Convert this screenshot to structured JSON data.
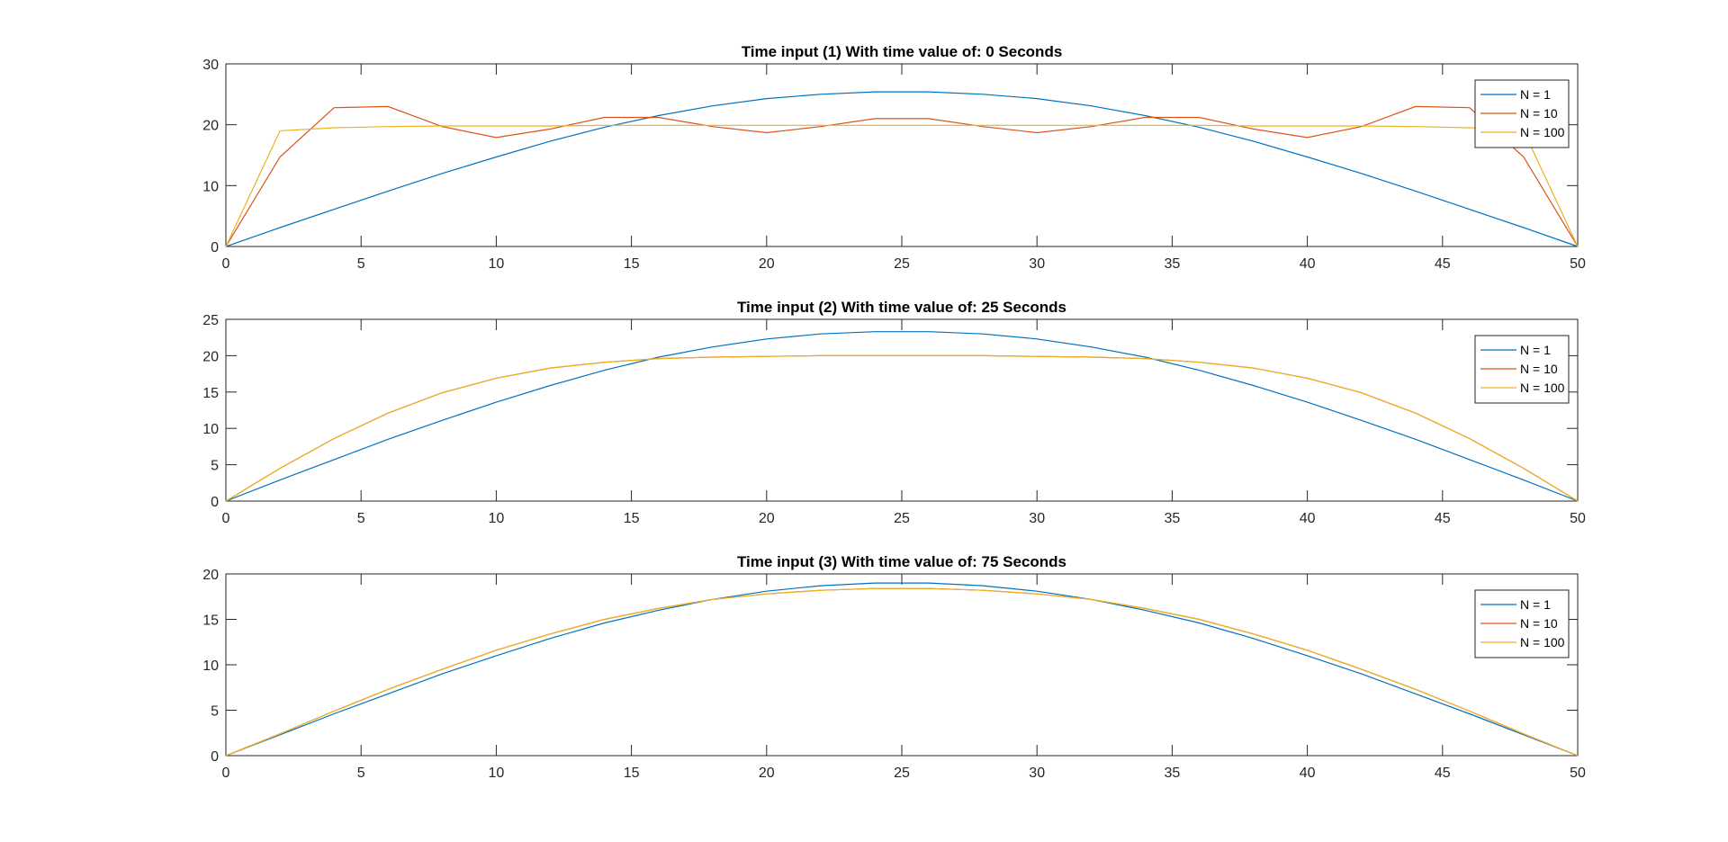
{
  "chart_data": [
    {
      "type": "line",
      "title": "Time input (1) With time value of: 0 Seconds",
      "xlabel": "",
      "ylabel": "",
      "xlim": [
        0,
        50
      ],
      "ylim": [
        0,
        30
      ],
      "xticks": [
        0,
        5,
        10,
        15,
        20,
        25,
        30,
        35,
        40,
        45,
        50
      ],
      "yticks": [
        0,
        10,
        20,
        30
      ],
      "grid": false,
      "legend_position": "top-right",
      "x": [
        0,
        2,
        4,
        6,
        8,
        10,
        12,
        14,
        16,
        18,
        20,
        22,
        24,
        26,
        28,
        30,
        32,
        34,
        36,
        38,
        40,
        42,
        44,
        46,
        48,
        50
      ],
      "series": [
        {
          "name": "N = 1",
          "color": "#0072bd",
          "values": [
            0,
            3.1,
            6.1,
            9.1,
            12.0,
            14.7,
            17.3,
            19.6,
            21.5,
            23.1,
            24.3,
            25.0,
            25.4,
            25.4,
            25.0,
            24.3,
            23.1,
            21.5,
            19.6,
            17.3,
            14.7,
            12.0,
            9.1,
            6.1,
            3.1,
            0
          ]
        },
        {
          "name": "N = 10",
          "color": "#d95319",
          "values": [
            0,
            14.7,
            22.8,
            23.0,
            19.7,
            17.9,
            19.3,
            21.2,
            21.2,
            19.7,
            18.7,
            19.7,
            21.0,
            21.0,
            19.7,
            18.7,
            19.7,
            21.2,
            21.2,
            19.3,
            17.9,
            19.7,
            23.0,
            22.8,
            14.7,
            0
          ]
        },
        {
          "name": "N = 100",
          "color": "#edb120",
          "values": [
            0,
            19.0,
            19.5,
            19.7,
            19.8,
            19.8,
            19.8,
            19.9,
            19.9,
            19.9,
            19.9,
            19.9,
            19.9,
            19.9,
            19.9,
            19.9,
            19.9,
            19.9,
            19.9,
            19.8,
            19.8,
            19.8,
            19.7,
            19.5,
            19.0,
            0
          ]
        }
      ]
    },
    {
      "type": "line",
      "title": "Time input (2) With time value of: 25 Seconds",
      "xlabel": "",
      "ylabel": "",
      "xlim": [
        0,
        50
      ],
      "ylim": [
        0,
        25
      ],
      "xticks": [
        0,
        5,
        10,
        15,
        20,
        25,
        30,
        35,
        40,
        45,
        50
      ],
      "yticks": [
        0,
        5,
        10,
        15,
        20,
        25
      ],
      "grid": false,
      "legend_position": "top-right",
      "x": [
        0,
        2,
        4,
        6,
        8,
        10,
        12,
        14,
        16,
        18,
        20,
        22,
        24,
        26,
        28,
        30,
        32,
        34,
        36,
        38,
        40,
        42,
        44,
        46,
        48,
        50
      ],
      "series": [
        {
          "name": "N = 1",
          "color": "#0072bd",
          "values": [
            0,
            2.9,
            5.7,
            8.5,
            11.1,
            13.6,
            15.9,
            18.0,
            19.8,
            21.2,
            22.3,
            23.0,
            23.3,
            23.3,
            23.0,
            22.3,
            21.2,
            19.8,
            18.0,
            15.9,
            13.6,
            11.1,
            8.5,
            5.7,
            2.9,
            0
          ]
        },
        {
          "name": "N = 10",
          "color": "#d95319",
          "values": [
            0,
            4.5,
            8.6,
            12.1,
            14.9,
            16.9,
            18.3,
            19.1,
            19.6,
            19.8,
            19.9,
            20.0,
            20.0,
            20.0,
            20.0,
            19.9,
            19.8,
            19.6,
            19.1,
            18.3,
            16.9,
            14.9,
            12.1,
            8.6,
            4.5,
            0
          ]
        },
        {
          "name": "N = 100",
          "color": "#edb120",
          "values": [
            0,
            4.5,
            8.6,
            12.1,
            14.9,
            16.9,
            18.3,
            19.1,
            19.6,
            19.8,
            19.9,
            20.0,
            20.0,
            20.0,
            20.0,
            19.9,
            19.8,
            19.6,
            19.1,
            18.3,
            16.9,
            14.9,
            12.1,
            8.6,
            4.5,
            0
          ]
        }
      ]
    },
    {
      "type": "line",
      "title": "Time input (3) With time value of: 75 Seconds",
      "xlabel": "",
      "ylabel": "",
      "xlim": [
        0,
        50
      ],
      "ylim": [
        0,
        20
      ],
      "xticks": [
        0,
        5,
        10,
        15,
        20,
        25,
        30,
        35,
        40,
        45,
        50
      ],
      "yticks": [
        0,
        5,
        10,
        15,
        20
      ],
      "grid": false,
      "legend_position": "top-right",
      "x": [
        0,
        2,
        4,
        6,
        8,
        10,
        12,
        14,
        16,
        18,
        20,
        22,
        24,
        26,
        28,
        30,
        32,
        34,
        36,
        38,
        40,
        42,
        44,
        46,
        48,
        50
      ],
      "series": [
        {
          "name": "N = 1",
          "color": "#0072bd",
          "values": [
            0,
            2.3,
            4.6,
            6.8,
            9.0,
            11.0,
            12.9,
            14.6,
            16.0,
            17.2,
            18.1,
            18.7,
            19.0,
            19.0,
            18.7,
            18.1,
            17.2,
            16.0,
            14.6,
            12.9,
            11.0,
            9.0,
            6.8,
            4.6,
            2.3,
            0
          ]
        },
        {
          "name": "N = 10",
          "color": "#d95319",
          "values": [
            0,
            2.4,
            4.9,
            7.3,
            9.5,
            11.6,
            13.4,
            15.0,
            16.2,
            17.2,
            17.8,
            18.2,
            18.4,
            18.4,
            18.2,
            17.8,
            17.2,
            16.2,
            15.0,
            13.4,
            11.6,
            9.5,
            7.3,
            4.9,
            2.4,
            0
          ]
        },
        {
          "name": "N = 100",
          "color": "#edb120",
          "values": [
            0,
            2.4,
            4.9,
            7.3,
            9.5,
            11.6,
            13.4,
            15.0,
            16.2,
            17.2,
            17.8,
            18.2,
            18.4,
            18.4,
            18.2,
            17.8,
            17.2,
            16.2,
            15.0,
            13.4,
            11.6,
            9.5,
            7.3,
            4.9,
            2.4,
            0
          ]
        }
      ]
    }
  ]
}
